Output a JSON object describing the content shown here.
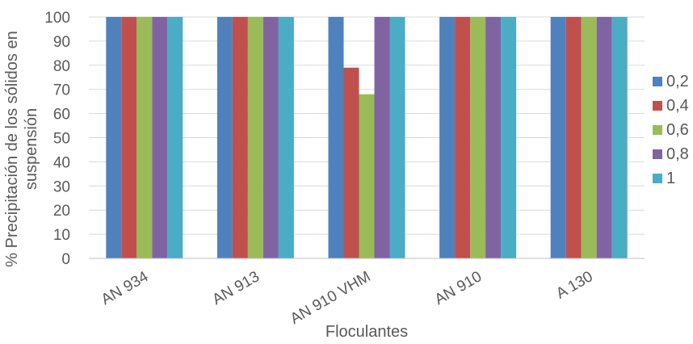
{
  "chart_data": {
    "type": "bar",
    "categories": [
      "AN 934",
      "AN 913",
      "AN 910 VHM",
      "AN 910",
      "A 130"
    ],
    "series": [
      {
        "name": "0,2",
        "color": "#4f81bd",
        "values": [
          100,
          100,
          100,
          100,
          100
        ]
      },
      {
        "name": "0,4",
        "color": "#c0504d",
        "values": [
          100,
          100,
          79,
          100,
          100
        ]
      },
      {
        "name": "0,6",
        "color": "#9bbb59",
        "values": [
          100,
          100,
          68,
          100,
          100
        ]
      },
      {
        "name": "0,8",
        "color": "#8064a2",
        "values": [
          100,
          100,
          100,
          100,
          100
        ]
      },
      {
        "name": "1",
        "color": "#4bacc6",
        "values": [
          100,
          100,
          100,
          100,
          100
        ]
      }
    ],
    "xlabel": "Floculantes",
    "ylabel_lines": [
      "% Precipitación de los sólidos en",
      "suspensión"
    ],
    "ylim": [
      0,
      100
    ],
    "yticks": [
      0,
      10,
      20,
      30,
      40,
      50,
      60,
      70,
      80,
      90,
      100
    ],
    "grid": true,
    "legend": "right"
  }
}
